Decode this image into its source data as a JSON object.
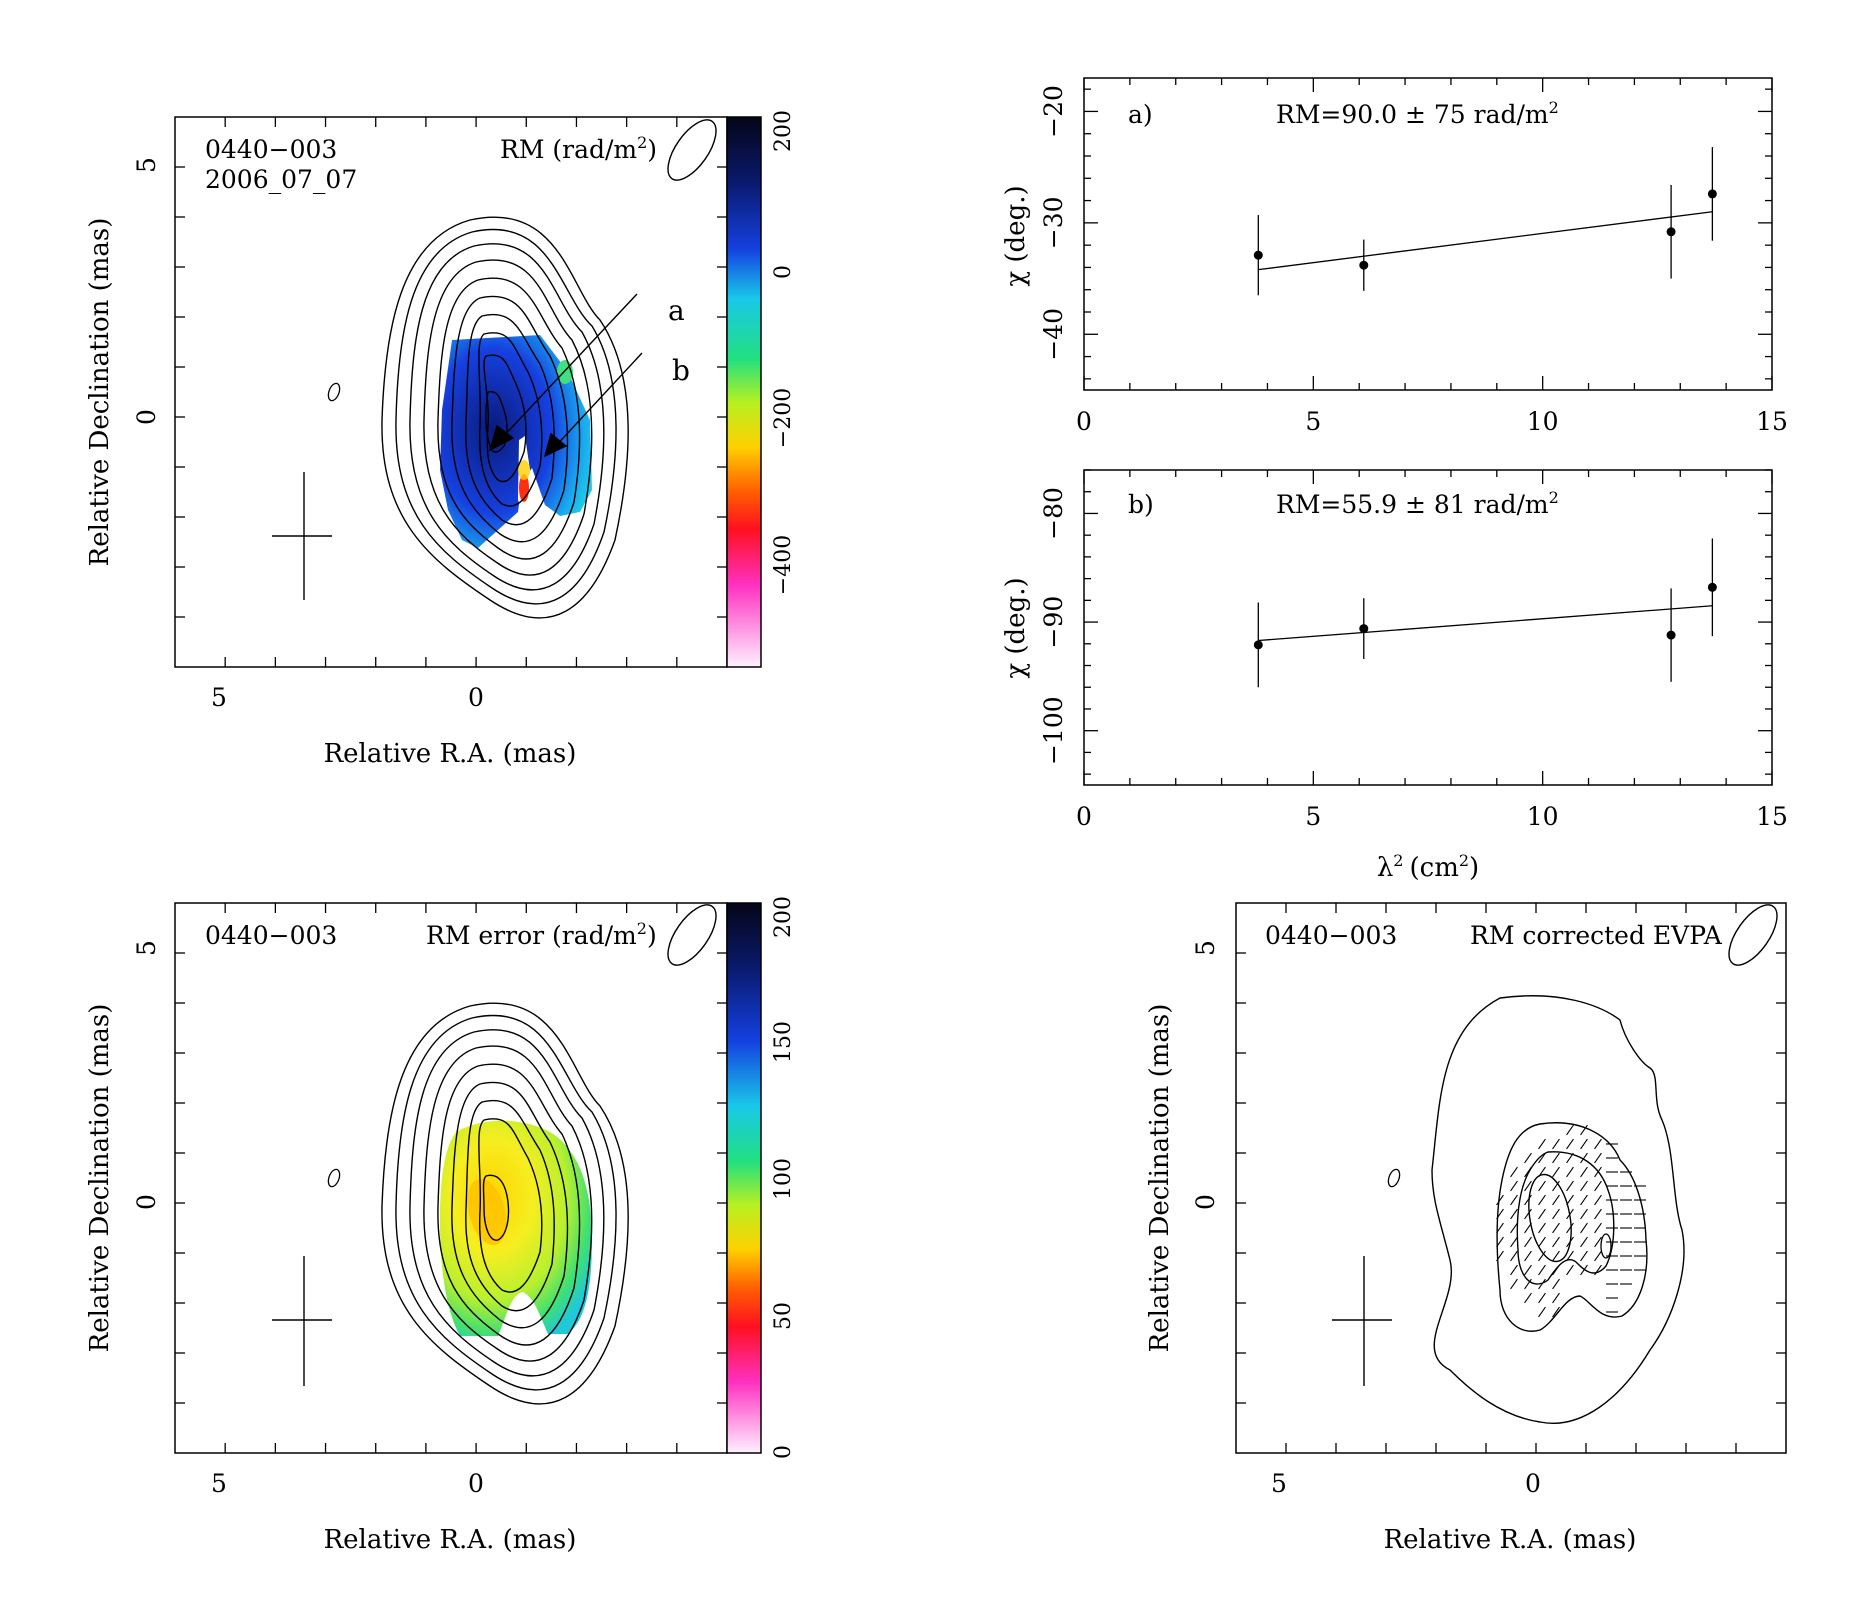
{
  "source": "0440−003",
  "epoch": "2006_07_07",
  "maps": [
    {
      "id": "rm",
      "title_source": "0440−003",
      "title_epoch": "2006_07_07",
      "title_quantity": "RM (rad/m",
      "xlabel": "Relative R.A. (mas)",
      "ylabel": "Relative Declination (mas)",
      "xticks": [
        "5",
        "0"
      ],
      "yticks": [
        "5",
        "0"
      ],
      "colorbar_ticks": [
        "200",
        "0",
        "−200",
        "−400"
      ],
      "colorbar_range": [
        -550,
        200
      ],
      "annotations": [
        "a",
        "b"
      ]
    },
    {
      "id": "rm-error",
      "title_source": "0440−003",
      "title_quantity": "RM error (rad/m",
      "xlabel": "Relative R.A. (mas)",
      "ylabel": "Relative Declination (mas)",
      "xticks": [
        "5",
        "0"
      ],
      "yticks": [
        "5",
        "0"
      ],
      "colorbar_ticks": [
        "200",
        "150",
        "100",
        "50",
        "0"
      ],
      "colorbar_range": [
        0,
        200
      ]
    },
    {
      "id": "evpa",
      "title_source": "0440−003",
      "title_quantity": "RM corrected EVPA",
      "xlabel": "Relative R.A. (mas)",
      "ylabel": "Relative Declination (mas)",
      "xticks": [
        "5",
        "0"
      ],
      "yticks": [
        "5",
        "0"
      ]
    }
  ],
  "chart_data": [
    {
      "type": "scatter",
      "panel_label": "a)",
      "annotation": "RM=90.0 ± 75 rad/m",
      "rm_value": 90.0,
      "rm_error": 75,
      "xlabel": "",
      "ylabel": "χ (deg.)",
      "xlim": [
        0,
        15
      ],
      "ylim": [
        -45,
        -17
      ],
      "xticks": [
        "0",
        "5",
        "10",
        "15"
      ],
      "yticks": [
        "−20",
        "−30",
        "−40"
      ],
      "x": [
        3.8,
        6.1,
        12.8,
        13.7
      ],
      "y": [
        -32.9,
        -33.8,
        -30.8,
        -27.4
      ],
      "yerr": [
        3.6,
        2.3,
        4.2,
        4.2
      ],
      "fit_line": {
        "x": [
          3.8,
          13.7
        ],
        "y": [
          -34.2,
          -29.0
        ]
      }
    },
    {
      "type": "scatter",
      "panel_label": "b)",
      "annotation": "RM=55.9 ± 81 rad/m",
      "rm_value": 55.9,
      "rm_error": 81,
      "xlabel": "λ",
      "xlabel_unit": "(cm",
      "ylabel": "χ (deg.)",
      "xlim": [
        0,
        15
      ],
      "ylim": [
        -105,
        -76
      ],
      "xticks": [
        "0",
        "5",
        "10",
        "15"
      ],
      "yticks": [
        "−80",
        "−90",
        "−100"
      ],
      "x": [
        3.8,
        6.1,
        12.8,
        13.7
      ],
      "y": [
        -92.1,
        -90.6,
        -91.2,
        -86.8
      ],
      "yerr": [
        3.9,
        2.8,
        4.3,
        4.5
      ],
      "fit_line": {
        "x": [
          3.8,
          13.7
        ],
        "y": [
          -91.7,
          -88.5
        ]
      }
    }
  ]
}
